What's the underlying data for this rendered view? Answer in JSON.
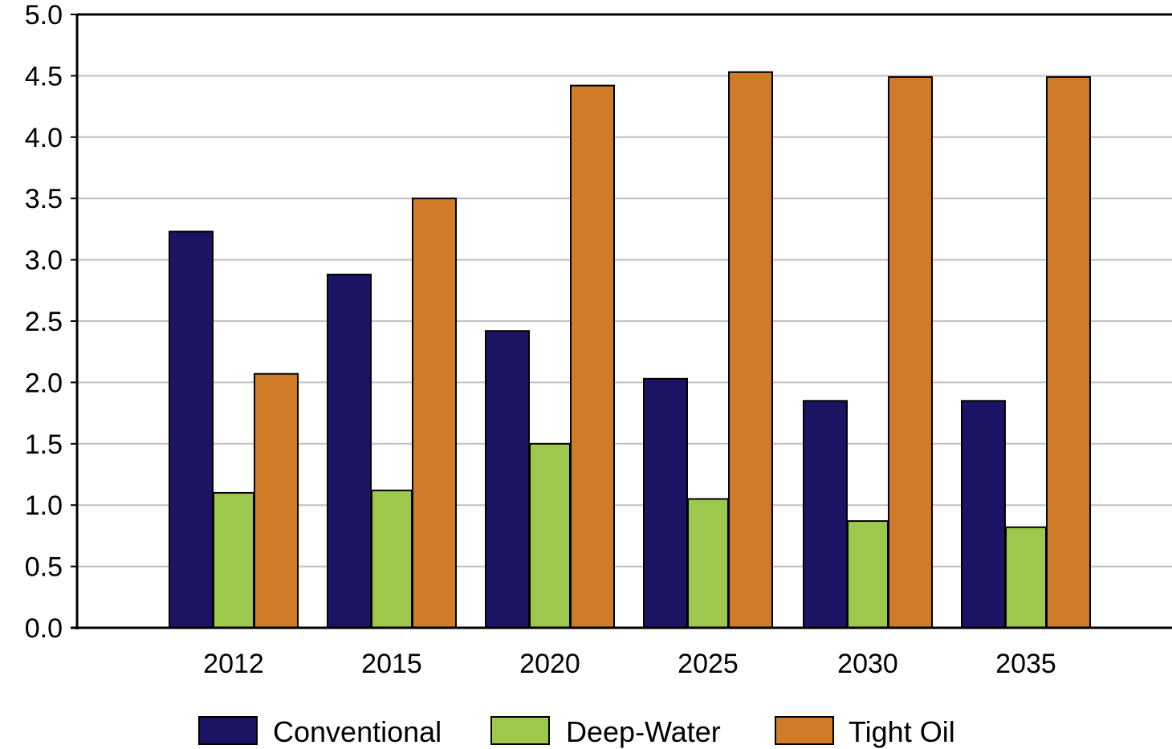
{
  "chart_data": {
    "type": "bar",
    "categories": [
      "2012",
      "2015",
      "2020",
      "2025",
      "2030",
      "2035"
    ],
    "series": [
      {
        "name": "Conventional",
        "color": "#1b1464",
        "values": [
          3.23,
          2.88,
          2.42,
          2.03,
          1.85,
          1.85
        ]
      },
      {
        "name": "Deep-Water",
        "color": "#9dc84b",
        "values": [
          1.1,
          1.12,
          1.5,
          1.05,
          0.87,
          0.82
        ]
      },
      {
        "name": "Tight Oil",
        "color": "#d07b27",
        "values": [
          2.07,
          3.5,
          4.42,
          4.53,
          4.49,
          4.49
        ]
      }
    ],
    "ylim": [
      0,
      5.0
    ],
    "yticks": [
      "0.0",
      "0.5",
      "1.0",
      "1.5",
      "2.0",
      "2.5",
      "3.0",
      "3.5",
      "4.0",
      "4.5",
      "5.0"
    ],
    "grid": true,
    "legend_position": "bottom",
    "title": "",
    "xlabel": "",
    "ylabel": ""
  }
}
